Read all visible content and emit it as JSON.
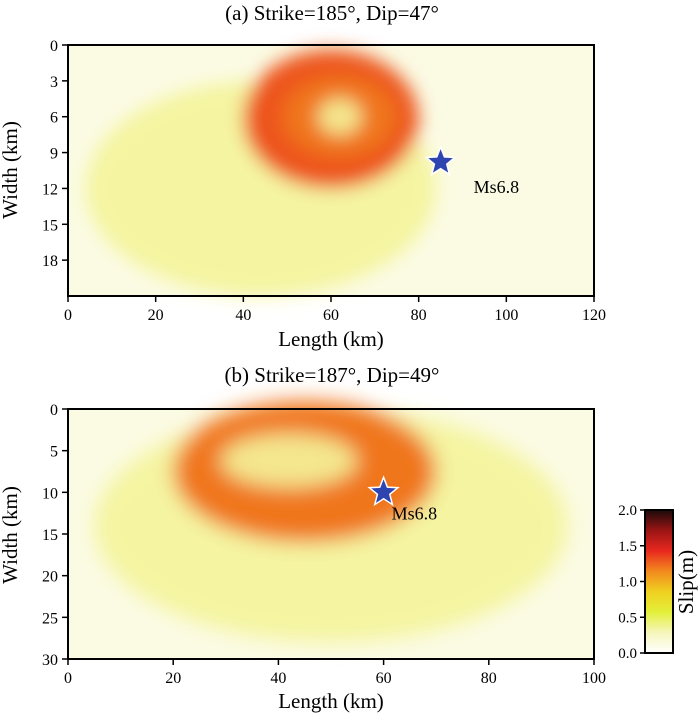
{
  "chart_data": [
    {
      "type": "heatmap",
      "title": "(a) Strike=185°, Dip=47°",
      "xlabel": "Length (km)",
      "ylabel": "Width (km)",
      "xlim": [
        0,
        120
      ],
      "ylim": [
        0,
        21
      ],
      "y_inverted": true,
      "x_ticks": [
        0,
        20,
        40,
        60,
        80,
        100,
        120
      ],
      "y_ticks": [
        0,
        3,
        6,
        9,
        12,
        15,
        18
      ],
      "slip_patches": [
        {
          "x": 60,
          "y": 6.2,
          "rx": 20,
          "ry": 5.8,
          "peak": 1.15
        },
        {
          "x": 62,
          "y": 6.0,
          "rx": 13,
          "ry": 3.4,
          "peak": 0.65
        },
        {
          "x": 62,
          "y": 6.0,
          "rx": 5,
          "ry": 1.5,
          "peak": 0.35
        },
        {
          "x": 44,
          "y": 12,
          "rx": 40,
          "ry": 9,
          "peak": 0.25
        }
      ],
      "hypocenter": {
        "x": 85,
        "y": 9.8,
        "label": "Ms6.8"
      }
    },
    {
      "type": "heatmap",
      "title": "(b) Strike=187°, Dip=49°",
      "xlabel": "Length (km)",
      "ylabel": "Width (km)",
      "xlim": [
        0,
        100
      ],
      "ylim": [
        0,
        30
      ],
      "y_inverted": true,
      "x_ticks": [
        0,
        20,
        40,
        60,
        80,
        100
      ],
      "y_ticks": [
        0,
        5,
        10,
        15,
        20,
        25,
        30
      ],
      "slip_patches": [
        {
          "x": 45,
          "y": 7.5,
          "rx": 25,
          "ry": 8.5,
          "peak": 1.05
        },
        {
          "x": 42,
          "y": 6.2,
          "rx": 13,
          "ry": 3.2,
          "peak": 0.45
        },
        {
          "x": 50,
          "y": 14,
          "rx": 45,
          "ry": 14,
          "peak": 0.3
        }
      ],
      "hypocenter": {
        "x": 60,
        "y": 10,
        "label": "Ms6.8"
      }
    }
  ],
  "colorbar": {
    "label": "Slip(m)",
    "range": [
      0.0,
      2.0
    ],
    "ticks": [
      "0.0",
      "0.5",
      "1.0",
      "1.5",
      "2.0"
    ],
    "colors": [
      "#ffffff",
      "#f6f6bc",
      "#e3ef3a",
      "#f0d020",
      "#f28a1e",
      "#e8281e",
      "#9a1414",
      "#1a0a0a"
    ]
  }
}
